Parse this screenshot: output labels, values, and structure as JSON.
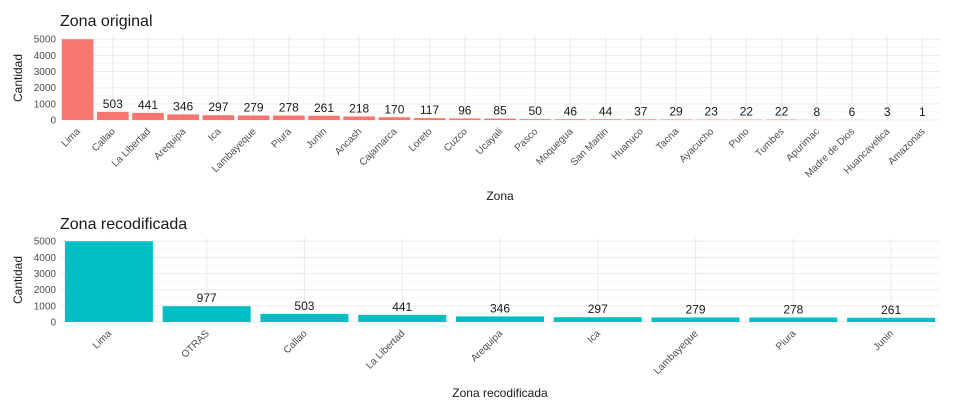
{
  "chart_data": [
    {
      "type": "bar",
      "title": "Zona original",
      "xlabel": "Zona",
      "ylabel": "Cantidad",
      "color": "#F8766D",
      "ylim": [
        0,
        5200
      ],
      "yticks": [
        0,
        1000,
        2000,
        3000,
        4000,
        5000
      ],
      "categories": [
        "Lima",
        "Callao",
        "La Libertad",
        "Arequipa",
        "Ica",
        "Lambayeque",
        "Piura",
        "Junin",
        "Ancash",
        "Cajamarca",
        "Loreto",
        "Cuzco",
        "Ucayali",
        "Pasco",
        "Moquegua",
        "San Martin",
        "Huanuco",
        "Tacna",
        "Ayacucho",
        "Puno",
        "Tumbes",
        "Apurimac",
        "Madre de Dios",
        "Huancavelica",
        "Amazonas"
      ],
      "values": [
        5000,
        503,
        441,
        346,
        297,
        279,
        278,
        261,
        218,
        170,
        117,
        96,
        85,
        50,
        46,
        44,
        37,
        29,
        23,
        22,
        22,
        8,
        6,
        3,
        1
      ],
      "labels": [
        "",
        "503",
        "441",
        "346",
        "297",
        "279",
        "278",
        "261",
        "218",
        "170",
        "117",
        "96",
        "85",
        "50",
        "46",
        "44",
        "37",
        "29",
        "23",
        "22",
        "22",
        "8",
        "6",
        "3",
        "1"
      ]
    },
    {
      "type": "bar",
      "title": "Zona recodificada",
      "xlabel": "Zona recodificada",
      "ylabel": "Cantidad",
      "color": "#00BFC4",
      "ylim": [
        0,
        5200
      ],
      "yticks": [
        0,
        1000,
        2000,
        3000,
        4000,
        5000
      ],
      "categories": [
        "Lima",
        "OTRAS",
        "Callao",
        "La Libertad",
        "Arequipa",
        "Ica",
        "Lambayeque",
        "Piura",
        "Junin"
      ],
      "values": [
        5000,
        977,
        503,
        441,
        346,
        297,
        279,
        278,
        261
      ],
      "labels": [
        "",
        "977",
        "503",
        "441",
        "346",
        "297",
        "279",
        "278",
        "261"
      ]
    }
  ]
}
